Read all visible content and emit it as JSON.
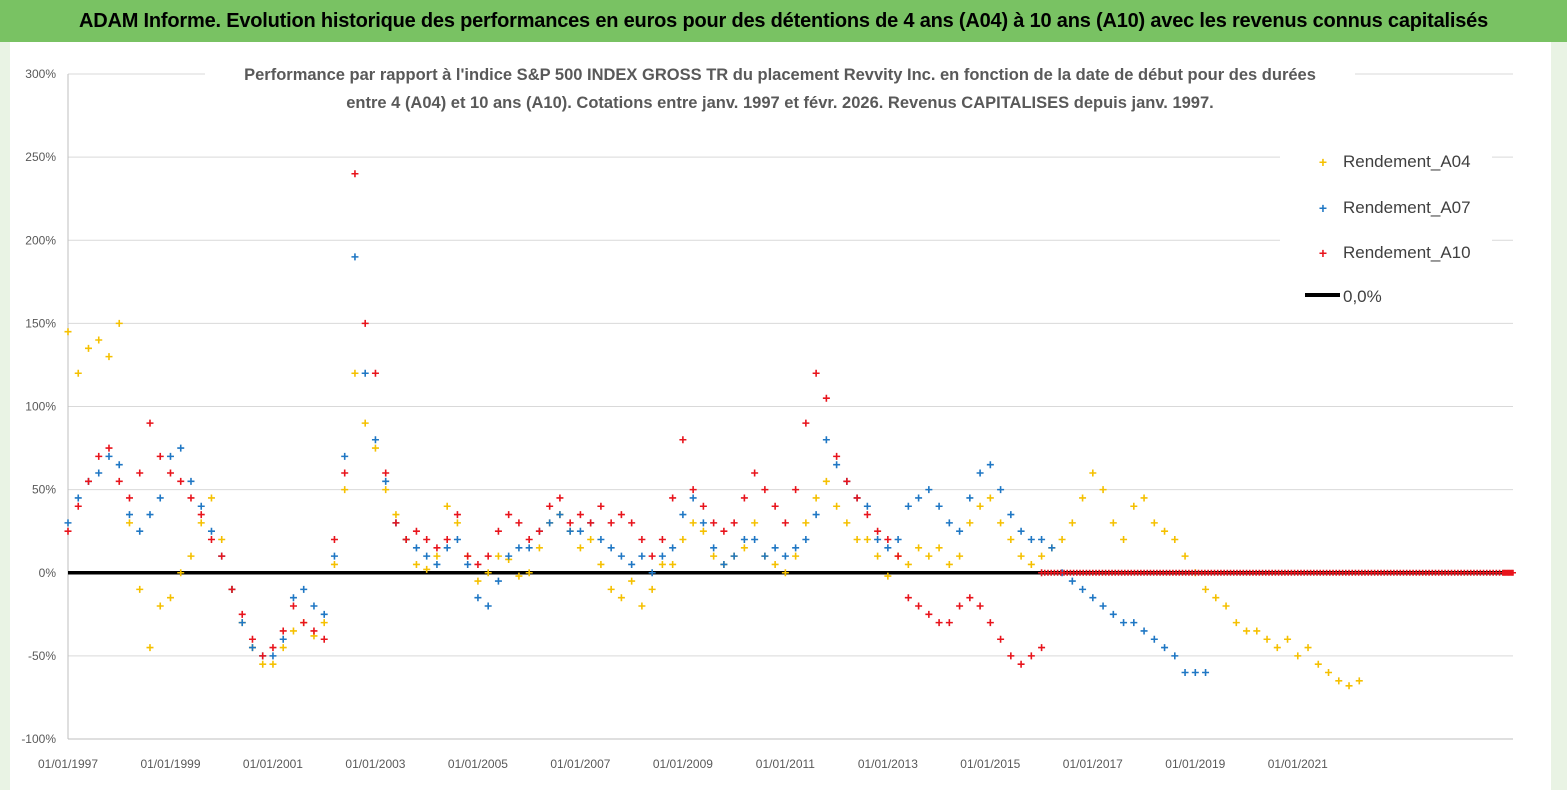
{
  "page_title": "ADAM Informe. Evolution historique des performances en euros pour des détentions de 4 ans (A04) à 10 ans (A10) avec les revenus connus capitalisés",
  "colors": {
    "banner": "#79c263",
    "A04": "#f5c000",
    "A07": "#1f77c4",
    "A10": "#e8141c",
    "zero": "#000000"
  },
  "chart_data": {
    "type": "scatter",
    "title_lines": [
      "Performance par rapport à l'indice S&P 500 INDEX GROSS TR  du placement Revvity Inc. en fonction de la date de début pour des durées",
      "entre 4 (A04) et 10 ans (A10).  Cotations entre janv. 1997 et févr. 2026. Revenus  CAPITALISES depuis janv. 1997."
    ],
    "xlabel": "",
    "ylabel": "",
    "xlim": [
      1997.0,
      2025.2
    ],
    "ylim": [
      -1.0,
      3.0
    ],
    "y_ticks": [
      3.0,
      2.5,
      2.0,
      1.5,
      1.0,
      0.5,
      0.0,
      -0.5,
      -1.0
    ],
    "y_tick_labels": [
      "300%",
      "250%",
      "200%",
      "150%",
      "100%",
      "50%",
      "0%",
      "-50%",
      "-100%"
    ],
    "x_ticks": [
      1997,
      1999,
      2001,
      2003,
      2005,
      2007,
      2009,
      2011,
      2013,
      2015,
      2017,
      2019,
      2021
    ],
    "x_tick_labels": [
      "01/01/1997",
      "01/01/1999",
      "01/01/2001",
      "01/01/2003",
      "01/01/2005",
      "01/01/2007",
      "01/01/2009",
      "01/01/2011",
      "01/01/2013",
      "01/01/2015",
      "01/01/2017",
      "01/01/2019",
      "01/01/2021"
    ],
    "legend_position": "top-right",
    "series": [
      {
        "name": "Rendement_A04",
        "marker": "+",
        "x": [
          1997.0,
          1997.2,
          1997.4,
          1997.6,
          1997.8,
          1998.0,
          1998.2,
          1998.4,
          1998.6,
          1998.8,
          1999.0,
          1999.2,
          1999.4,
          1999.6,
          1999.8,
          2000.0,
          2000.2,
          2000.4,
          2000.6,
          2000.8,
          2001.0,
          2001.2,
          2001.4,
          2001.6,
          2001.8,
          2002.0,
          2002.2,
          2002.4,
          2002.6,
          2002.8,
          2003.0,
          2003.2,
          2003.4,
          2003.6,
          2003.8,
          2004.0,
          2004.2,
          2004.4,
          2004.6,
          2004.8,
          2005.0,
          2005.2,
          2005.4,
          2005.6,
          2005.8,
          2006.0,
          2006.2,
          2006.4,
          2006.6,
          2006.8,
          2007.0,
          2007.2,
          2007.4,
          2007.6,
          2007.8,
          2008.0,
          2008.2,
          2008.4,
          2008.6,
          2008.8,
          2009.0,
          2009.2,
          2009.4,
          2009.6,
          2009.8,
          2010.0,
          2010.2,
          2010.4,
          2010.6,
          2010.8,
          2011.0,
          2011.2,
          2011.4,
          2011.6,
          2011.8,
          2012.0,
          2012.2,
          2012.4,
          2012.6,
          2012.8,
          2013.0,
          2013.2,
          2013.4,
          2013.6,
          2013.8,
          2014.0,
          2014.2,
          2014.4,
          2014.6,
          2014.8,
          2015.0,
          2015.2,
          2015.4,
          2015.6,
          2015.8,
          2016.0,
          2016.2,
          2016.4,
          2016.6,
          2016.8,
          2017.0,
          2017.2,
          2017.4,
          2017.6,
          2017.8,
          2018.0,
          2018.2,
          2018.4,
          2018.6,
          2018.8,
          2019.0,
          2019.2,
          2019.4,
          2019.6,
          2019.8,
          2020.0,
          2020.2,
          2020.4,
          2020.6,
          2020.8,
          2021.0,
          2021.2,
          2021.4,
          2021.6,
          2021.8,
          2022.0,
          2022.2
        ],
        "y": [
          1.45,
          1.2,
          1.35,
          1.4,
          1.3,
          1.5,
          0.3,
          -0.1,
          -0.45,
          -0.2,
          -0.15,
          0.0,
          0.1,
          0.3,
          0.45,
          0.2,
          -0.1,
          -0.3,
          -0.45,
          -0.55,
          -0.55,
          -0.45,
          -0.35,
          -0.3,
          -0.38,
          -0.3,
          0.05,
          0.5,
          1.2,
          0.9,
          0.75,
          0.5,
          0.35,
          0.2,
          0.05,
          0.02,
          0.1,
          0.4,
          0.3,
          0.1,
          -0.05,
          0.0,
          0.1,
          0.08,
          -0.02,
          0.0,
          0.15,
          0.3,
          0.35,
          0.25,
          0.15,
          0.2,
          0.05,
          -0.1,
          -0.15,
          -0.05,
          -0.2,
          -0.1,
          0.05,
          0.05,
          0.2,
          0.3,
          0.25,
          0.1,
          0.05,
          0.1,
          0.15,
          0.3,
          0.1,
          0.05,
          0.0,
          0.1,
          0.3,
          0.45,
          0.55,
          0.4,
          0.3,
          0.2,
          0.2,
          0.1,
          -0.02,
          0.1,
          0.05,
          0.15,
          0.1,
          0.15,
          0.05,
          0.1,
          0.3,
          0.4,
          0.45,
          0.3,
          0.2,
          0.1,
          0.05,
          0.1,
          0.15,
          0.2,
          0.3,
          0.45,
          0.6,
          0.5,
          0.3,
          0.2,
          0.4,
          0.45,
          0.3,
          0.25,
          0.2,
          0.1,
          0.0,
          -0.1,
          -0.15,
          -0.2,
          -0.3,
          -0.35,
          -0.35,
          -0.4,
          -0.45,
          -0.4,
          -0.5,
          -0.45,
          -0.55,
          -0.6,
          -0.65,
          -0.68,
          -0.65
        ]
      },
      {
        "name": "Rendement_A07",
        "marker": "+",
        "x": [
          1997.0,
          1997.2,
          1997.4,
          1997.6,
          1997.8,
          1998.0,
          1998.2,
          1998.4,
          1998.6,
          1998.8,
          1999.0,
          1999.2,
          1999.4,
          1999.6,
          1999.8,
          2000.0,
          2000.2,
          2000.4,
          2000.6,
          2000.8,
          2001.0,
          2001.2,
          2001.4,
          2001.6,
          2001.8,
          2002.0,
          2002.2,
          2002.4,
          2002.6,
          2002.8,
          2003.0,
          2003.2,
          2003.4,
          2003.6,
          2003.8,
          2004.0,
          2004.2,
          2004.4,
          2004.6,
          2004.8,
          2005.0,
          2005.2,
          2005.4,
          2005.6,
          2005.8,
          2006.0,
          2006.2,
          2006.4,
          2006.6,
          2006.8,
          2007.0,
          2007.2,
          2007.4,
          2007.6,
          2007.8,
          2008.0,
          2008.2,
          2008.4,
          2008.6,
          2008.8,
          2009.0,
          2009.2,
          2009.4,
          2009.6,
          2009.8,
          2010.0,
          2010.2,
          2010.4,
          2010.6,
          2010.8,
          2011.0,
          2011.2,
          2011.4,
          2011.6,
          2011.8,
          2012.0,
          2012.2,
          2012.4,
          2012.6,
          2012.8,
          2013.0,
          2013.2,
          2013.4,
          2013.6,
          2013.8,
          2014.0,
          2014.2,
          2014.4,
          2014.6,
          2014.8,
          2015.0,
          2015.2,
          2015.4,
          2015.6,
          2015.8,
          2016.0,
          2016.2,
          2016.4,
          2016.6,
          2016.8,
          2017.0,
          2017.2,
          2017.4,
          2017.6,
          2017.8,
          2018.0,
          2018.2,
          2018.4,
          2018.6,
          2018.8,
          2019.0,
          2019.2
        ],
        "y": [
          0.3,
          0.45,
          0.55,
          0.6,
          0.7,
          0.65,
          0.35,
          0.25,
          0.35,
          0.45,
          0.7,
          0.75,
          0.55,
          0.4,
          0.25,
          0.1,
          -0.1,
          -0.3,
          -0.45,
          -0.5,
          -0.5,
          -0.4,
          -0.15,
          -0.1,
          -0.2,
          -0.25,
          0.1,
          0.7,
          1.9,
          1.2,
          0.8,
          0.55,
          0.3,
          0.2,
          0.15,
          0.1,
          0.05,
          0.15,
          0.2,
          0.05,
          -0.15,
          -0.2,
          -0.05,
          0.1,
          0.15,
          0.15,
          0.25,
          0.3,
          0.35,
          0.25,
          0.25,
          0.3,
          0.2,
          0.15,
          0.1,
          0.05,
          0.1,
          0.0,
          0.1,
          0.15,
          0.35,
          0.45,
          0.3,
          0.15,
          0.05,
          0.1,
          0.2,
          0.2,
          0.1,
          0.15,
          0.1,
          0.15,
          0.2,
          0.35,
          0.8,
          0.65,
          0.55,
          0.45,
          0.4,
          0.2,
          0.15,
          0.2,
          0.4,
          0.45,
          0.5,
          0.4,
          0.3,
          0.25,
          0.45,
          0.6,
          0.65,
          0.5,
          0.35,
          0.25,
          0.2,
          0.2,
          0.15,
          0.0,
          -0.05,
          -0.1,
          -0.15,
          -0.2,
          -0.25,
          -0.3,
          -0.3,
          -0.35,
          -0.4,
          -0.45,
          -0.5,
          -0.6,
          -0.6,
          -0.6
        ]
      },
      {
        "name": "Rendement_A10",
        "marker": "+",
        "x": [
          1997.0,
          1997.2,
          1997.4,
          1997.6,
          1997.8,
          1998.0,
          1998.2,
          1998.4,
          1998.6,
          1998.8,
          1999.0,
          1999.2,
          1999.4,
          1999.6,
          1999.8,
          2000.0,
          2000.2,
          2000.4,
          2000.6,
          2000.8,
          2001.0,
          2001.2,
          2001.4,
          2001.6,
          2001.8,
          2002.0,
          2002.2,
          2002.4,
          2002.6,
          2002.8,
          2003.0,
          2003.2,
          2003.4,
          2003.6,
          2003.8,
          2004.0,
          2004.2,
          2004.4,
          2004.6,
          2004.8,
          2005.0,
          2005.2,
          2005.4,
          2005.6,
          2005.8,
          2006.0,
          2006.2,
          2006.4,
          2006.6,
          2006.8,
          2007.0,
          2007.2,
          2007.4,
          2007.6,
          2007.8,
          2008.0,
          2008.2,
          2008.4,
          2008.6,
          2008.8,
          2009.0,
          2009.2,
          2009.4,
          2009.6,
          2009.8,
          2010.0,
          2010.2,
          2010.4,
          2010.6,
          2010.8,
          2011.0,
          2011.2,
          2011.4,
          2011.6,
          2011.8,
          2012.0,
          2012.2,
          2012.4,
          2012.6,
          2012.8,
          2013.0,
          2013.2,
          2013.4,
          2013.6,
          2013.8,
          2014.0,
          2014.2,
          2014.4,
          2014.6,
          2014.8,
          2015.0,
          2015.2,
          2015.4,
          2015.6,
          2015.8,
          2016.0
        ],
        "y": [
          0.25,
          0.4,
          0.55,
          0.7,
          0.75,
          0.55,
          0.45,
          0.6,
          0.9,
          0.7,
          0.6,
          0.55,
          0.45,
          0.35,
          0.2,
          0.1,
          -0.1,
          -0.25,
          -0.4,
          -0.5,
          -0.45,
          -0.35,
          -0.2,
          -0.3,
          -0.35,
          -0.4,
          0.2,
          0.6,
          2.4,
          1.5,
          1.2,
          0.6,
          0.3,
          0.2,
          0.25,
          0.2,
          0.15,
          0.2,
          0.35,
          0.1,
          0.05,
          0.1,
          0.25,
          0.35,
          0.3,
          0.2,
          0.25,
          0.4,
          0.45,
          0.3,
          0.35,
          0.3,
          0.4,
          0.3,
          0.35,
          0.3,
          0.2,
          0.1,
          0.2,
          0.45,
          0.8,
          0.5,
          0.4,
          0.3,
          0.25,
          0.3,
          0.45,
          0.6,
          0.5,
          0.4,
          0.3,
          0.5,
          0.9,
          1.2,
          1.05,
          0.7,
          0.55,
          0.45,
          0.35,
          0.25,
          0.2,
          0.1,
          -0.15,
          -0.2,
          -0.25,
          -0.3,
          -0.3,
          -0.2,
          -0.15,
          -0.2,
          -0.3,
          -0.4,
          -0.5,
          -0.55,
          -0.5,
          -0.45
        ]
      },
      {
        "name": "Rendement_A10",
        "legend": false,
        "note": "points at 0% for start dates without a complete 10-year window",
        "x": [
          2016.0,
          2016.5,
          2017.0,
          2017.5,
          2018.0,
          2018.5,
          2019.0,
          2019.5,
          2020.0,
          2020.5,
          2021.0,
          2021.5,
          2022.0,
          2022.5,
          2023.0,
          2023.5,
          2024.0,
          2024.5,
          2025.0,
          2025.2
        ],
        "y": [
          0,
          0,
          0,
          0,
          0,
          0,
          0,
          0,
          0,
          0,
          0,
          0,
          0,
          0,
          0,
          0,
          0,
          0,
          0,
          0
        ]
      }
    ],
    "reference_line": {
      "name": "0,0%",
      "y": 0.0
    },
    "legend": [
      "Rendement_A04",
      "Rendement_A07",
      "Rendement_A10",
      "0,0%"
    ]
  }
}
